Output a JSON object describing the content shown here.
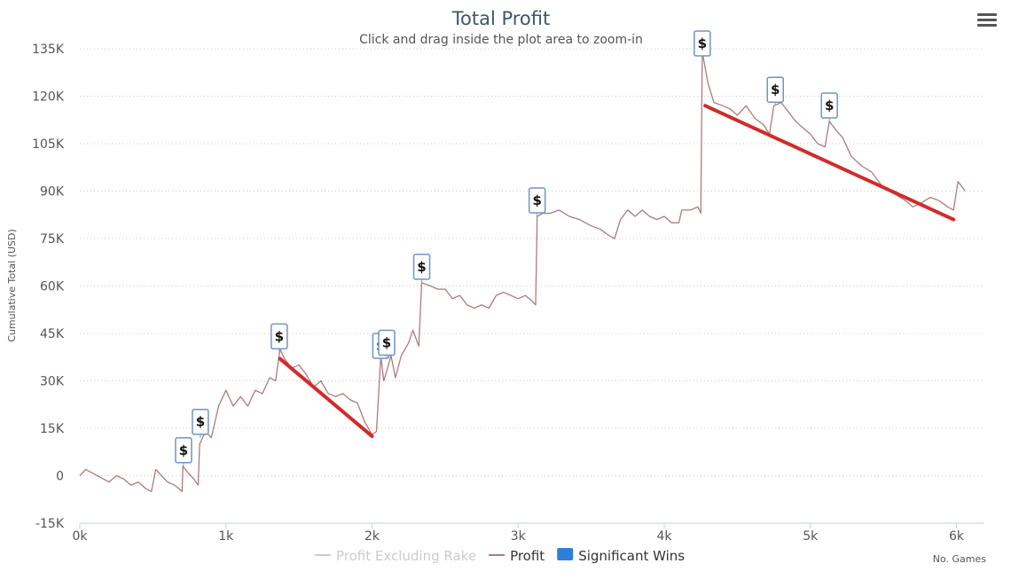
{
  "chart_data": {
    "type": "line",
    "title": "Total Profit",
    "subtitle": "Click and drag inside the plot area to zoom-in",
    "xlabel": "No. Games",
    "ylabel": "Cumulative Total (USD)",
    "xlim": [
      0,
      6100
    ],
    "ylim": [
      -15000,
      135000
    ],
    "x_ticks": [
      0,
      1000,
      2000,
      3000,
      4000,
      5000,
      6000
    ],
    "x_tick_labels": [
      "0k",
      "1k",
      "2k",
      "3k",
      "4k",
      "5k",
      "6k"
    ],
    "y_ticks": [
      -15000,
      0,
      15000,
      30000,
      45000,
      60000,
      75000,
      90000,
      105000,
      120000,
      135000
    ],
    "y_tick_labels": [
      "-15K",
      "0",
      "15K",
      "30K",
      "45K",
      "60K",
      "75K",
      "90K",
      "105K",
      "120K",
      "135K"
    ],
    "grid": "horizontal dotted",
    "legend_position": "bottom-center",
    "legend": [
      {
        "name": "Profit Excluding Rake",
        "color": "#cccccc",
        "symbol": "line",
        "visible": false
      },
      {
        "name": "Profit",
        "color": "#b07a7a",
        "symbol": "line",
        "visible": true
      },
      {
        "name": "Significant Wins",
        "color": "#2f7ed8",
        "symbol": "square",
        "visible": true
      }
    ],
    "series": [
      {
        "name": "Profit",
        "color": "#b07a7a",
        "points": [
          [
            0,
            0
          ],
          [
            40,
            2000
          ],
          [
            80,
            1000
          ],
          [
            120,
            0
          ],
          [
            160,
            -1000
          ],
          [
            200,
            -2000
          ],
          [
            250,
            0
          ],
          [
            300,
            -1000
          ],
          [
            350,
            -3000
          ],
          [
            400,
            -2000
          ],
          [
            450,
            -4000
          ],
          [
            490,
            -5000
          ],
          [
            520,
            2000
          ],
          [
            560,
            0
          ],
          [
            600,
            -2000
          ],
          [
            650,
            -3000
          ],
          [
            700,
            -5000
          ],
          [
            705,
            3000
          ],
          [
            740,
            1000
          ],
          [
            780,
            -1000
          ],
          [
            810,
            -3000
          ],
          [
            820,
            10000
          ],
          [
            860,
            14000
          ],
          [
            900,
            12000
          ],
          [
            950,
            22000
          ],
          [
            1000,
            27000
          ],
          [
            1050,
            22000
          ],
          [
            1100,
            25000
          ],
          [
            1150,
            22000
          ],
          [
            1200,
            27000
          ],
          [
            1250,
            26000
          ],
          [
            1300,
            31000
          ],
          [
            1340,
            30000
          ],
          [
            1370,
            40000
          ],
          [
            1400,
            37000
          ],
          [
            1450,
            34000
          ],
          [
            1500,
            35000
          ],
          [
            1550,
            32000
          ],
          [
            1600,
            28000
          ],
          [
            1650,
            30000
          ],
          [
            1700,
            26000
          ],
          [
            1750,
            25000
          ],
          [
            1800,
            26000
          ],
          [
            1850,
            24000
          ],
          [
            1900,
            23000
          ],
          [
            1950,
            17000
          ],
          [
            2000,
            13000
          ],
          [
            2030,
            14000
          ],
          [
            2060,
            38000
          ],
          [
            2080,
            30000
          ],
          [
            2100,
            33000
          ],
          [
            2130,
            38000
          ],
          [
            2160,
            31000
          ],
          [
            2200,
            38000
          ],
          [
            2250,
            42000
          ],
          [
            2280,
            46000
          ],
          [
            2320,
            41000
          ],
          [
            2340,
            61000
          ],
          [
            2400,
            60000
          ],
          [
            2450,
            59000
          ],
          [
            2500,
            59000
          ],
          [
            2550,
            56000
          ],
          [
            2600,
            57000
          ],
          [
            2650,
            54000
          ],
          [
            2700,
            53000
          ],
          [
            2750,
            54000
          ],
          [
            2800,
            53000
          ],
          [
            2850,
            57000
          ],
          [
            2900,
            58000
          ],
          [
            2950,
            57000
          ],
          [
            3000,
            56000
          ],
          [
            3050,
            57000
          ],
          [
            3100,
            55000
          ],
          [
            3120,
            54000
          ],
          [
            3130,
            82000
          ],
          [
            3170,
            83000
          ],
          [
            3220,
            83000
          ],
          [
            3280,
            84000
          ],
          [
            3350,
            82000
          ],
          [
            3420,
            81000
          ],
          [
            3500,
            79000
          ],
          [
            3560,
            78000
          ],
          [
            3620,
            76000
          ],
          [
            3660,
            75000
          ],
          [
            3700,
            81000
          ],
          [
            3750,
            84000
          ],
          [
            3800,
            82000
          ],
          [
            3850,
            84000
          ],
          [
            3900,
            82000
          ],
          [
            3950,
            81000
          ],
          [
            4000,
            82000
          ],
          [
            4050,
            80000
          ],
          [
            4100,
            80000
          ],
          [
            4120,
            84000
          ],
          [
            4180,
            84000
          ],
          [
            4230,
            85000
          ],
          [
            4250,
            83000
          ],
          [
            4260,
            134000
          ],
          [
            4300,
            124000
          ],
          [
            4340,
            118000
          ],
          [
            4400,
            117000
          ],
          [
            4450,
            116000
          ],
          [
            4500,
            114000
          ],
          [
            4560,
            117000
          ],
          [
            4620,
            113000
          ],
          [
            4680,
            111000
          ],
          [
            4720,
            108000
          ],
          [
            4750,
            117000
          ],
          [
            4800,
            118000
          ],
          [
            4850,
            115000
          ],
          [
            4900,
            112000
          ],
          [
            4950,
            110000
          ],
          [
            5000,
            108000
          ],
          [
            5050,
            105000
          ],
          [
            5100,
            104000
          ],
          [
            5130,
            112000
          ],
          [
            5180,
            109000
          ],
          [
            5220,
            107000
          ],
          [
            5280,
            101000
          ],
          [
            5350,
            98000
          ],
          [
            5420,
            96000
          ],
          [
            5500,
            91000
          ],
          [
            5580,
            89000
          ],
          [
            5650,
            87000
          ],
          [
            5700,
            85000
          ],
          [
            5750,
            86000
          ],
          [
            5820,
            88000
          ],
          [
            5880,
            87000
          ],
          [
            5940,
            85000
          ],
          [
            5980,
            84000
          ],
          [
            6010,
            93000
          ],
          [
            6060,
            90000
          ]
        ]
      }
    ],
    "significant_wins": [
      {
        "x": 710,
        "y": 3000,
        "label": "$"
      },
      {
        "x": 825,
        "y": 12000,
        "label": "$"
      },
      {
        "x": 1365,
        "y": 39000,
        "label": "$"
      },
      {
        "x": 2060,
        "y": 36000,
        "label": "$"
      },
      {
        "x": 2100,
        "y": 37000,
        "label": "$"
      },
      {
        "x": 2340,
        "y": 61000,
        "label": "$"
      },
      {
        "x": 3130,
        "y": 82000,
        "label": "$"
      },
      {
        "x": 4260,
        "y": 134000,
        "label": "$"
      },
      {
        "x": 4760,
        "y": 117000,
        "label": "$"
      },
      {
        "x": 5130,
        "y": 112000,
        "label": "$"
      }
    ],
    "annotations": [
      {
        "type": "trend-line",
        "color": "#d42a2a",
        "from": [
          1370,
          37000
        ],
        "to": [
          2000,
          12500
        ]
      },
      {
        "type": "trend-line",
        "color": "#d42a2a",
        "from": [
          4280,
          117000
        ],
        "to": [
          5980,
          81000
        ]
      }
    ]
  }
}
